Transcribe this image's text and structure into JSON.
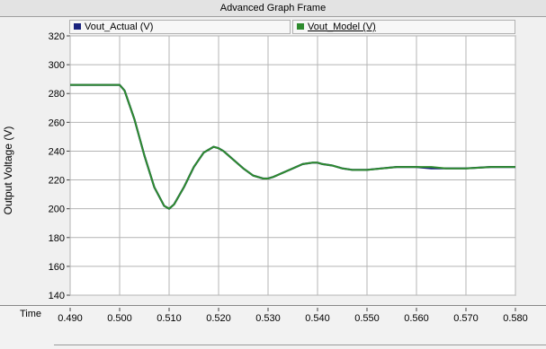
{
  "window": {
    "title": "Advanced Graph Frame"
  },
  "time_label": "Time",
  "chart_data": {
    "type": "line",
    "title": "",
    "xlabel": "Time",
    "ylabel": "Output Voltage (V)",
    "xlim": [
      0.49,
      0.58
    ],
    "ylim": [
      140,
      320
    ],
    "x_ticks": [
      "0.490",
      "0.500",
      "0.510",
      "0.520",
      "0.530",
      "0.540",
      "0.550",
      "0.560",
      "0.570",
      "0.580"
    ],
    "y_ticks": [
      "140",
      "160",
      "180",
      "200",
      "220",
      "240",
      "260",
      "280",
      "300",
      "320"
    ],
    "grid": true,
    "legend_position": "top",
    "series": [
      {
        "name": "Vout_Actual (V)",
        "color": "#1a237e",
        "x": [
          0.49,
          0.5,
          0.501,
          0.503,
          0.505,
          0.507,
          0.509,
          0.51,
          0.511,
          0.513,
          0.515,
          0.517,
          0.519,
          0.52,
          0.521,
          0.523,
          0.525,
          0.527,
          0.529,
          0.53,
          0.531,
          0.533,
          0.535,
          0.537,
          0.539,
          0.54,
          0.541,
          0.543,
          0.545,
          0.547,
          0.549,
          0.55,
          0.553,
          0.556,
          0.56,
          0.563,
          0.566,
          0.57,
          0.575,
          0.58
        ],
        "y": [
          286,
          286,
          282,
          262,
          237,
          215,
          202,
          200,
          203,
          215,
          229,
          239,
          243,
          242,
          240,
          234,
          228,
          223,
          221,
          221,
          222,
          225,
          228,
          231,
          232,
          232,
          231,
          230,
          228,
          227,
          227,
          227,
          228,
          229,
          229,
          228,
          228,
          228,
          229,
          229
        ]
      },
      {
        "name": "Vout_Model (V)",
        "color": "#2e8b2e",
        "x": [
          0.49,
          0.5,
          0.501,
          0.503,
          0.505,
          0.507,
          0.509,
          0.51,
          0.511,
          0.513,
          0.515,
          0.517,
          0.519,
          0.52,
          0.521,
          0.523,
          0.525,
          0.527,
          0.529,
          0.53,
          0.531,
          0.533,
          0.535,
          0.537,
          0.539,
          0.54,
          0.541,
          0.543,
          0.545,
          0.547,
          0.549,
          0.55,
          0.553,
          0.556,
          0.56,
          0.563,
          0.566,
          0.57,
          0.575,
          0.58
        ],
        "y": [
          286,
          286,
          282,
          262,
          237,
          215,
          202,
          200,
          203,
          215,
          229,
          239,
          243,
          242,
          240,
          234,
          228,
          223,
          221,
          221,
          222,
          225,
          228,
          231,
          232,
          232,
          231,
          230,
          228,
          227,
          227,
          227,
          228,
          229,
          229,
          229,
          228,
          228,
          229,
          229
        ]
      }
    ]
  }
}
